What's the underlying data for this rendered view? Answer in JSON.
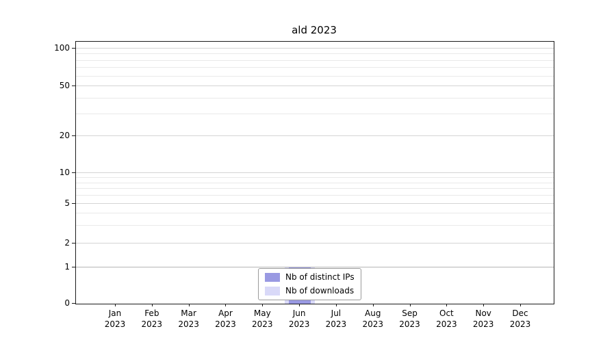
{
  "chart_data": {
    "type": "bar",
    "title": "ald 2023",
    "categories": [
      "Jan",
      "Feb",
      "Mar",
      "Apr",
      "May",
      "Jun",
      "Jul",
      "Aug",
      "Sep",
      "Oct",
      "Nov",
      "Dec"
    ],
    "year_label": "2023",
    "series": [
      {
        "name": "Nb of distinct IPs",
        "color": "#9999e2",
        "values": [
          0,
          0,
          0,
          0,
          0,
          1,
          0,
          0,
          0,
          0,
          0,
          0
        ]
      },
      {
        "name": "Nb of downloads",
        "color": "#d9d9f8",
        "values": [
          0,
          0,
          0,
          0,
          0,
          1,
          0,
          0,
          0,
          0,
          0,
          0
        ]
      }
    ],
    "y_ticks": [
      0,
      1,
      2,
      5,
      10,
      20,
      50,
      100
    ],
    "minor_gridlines": [
      3,
      4,
      6,
      7,
      8,
      9,
      30,
      40,
      60,
      70,
      80,
      90
    ],
    "ylim": [
      0,
      115
    ],
    "scale": "symlog",
    "grid": true,
    "legend_position": "lower center",
    "colors": {
      "axis": "#1a1a1a",
      "major_grid": "#d4d4d4",
      "unit_grid": "#b5b5b5",
      "minor_grid": "#e9e9e9"
    }
  }
}
